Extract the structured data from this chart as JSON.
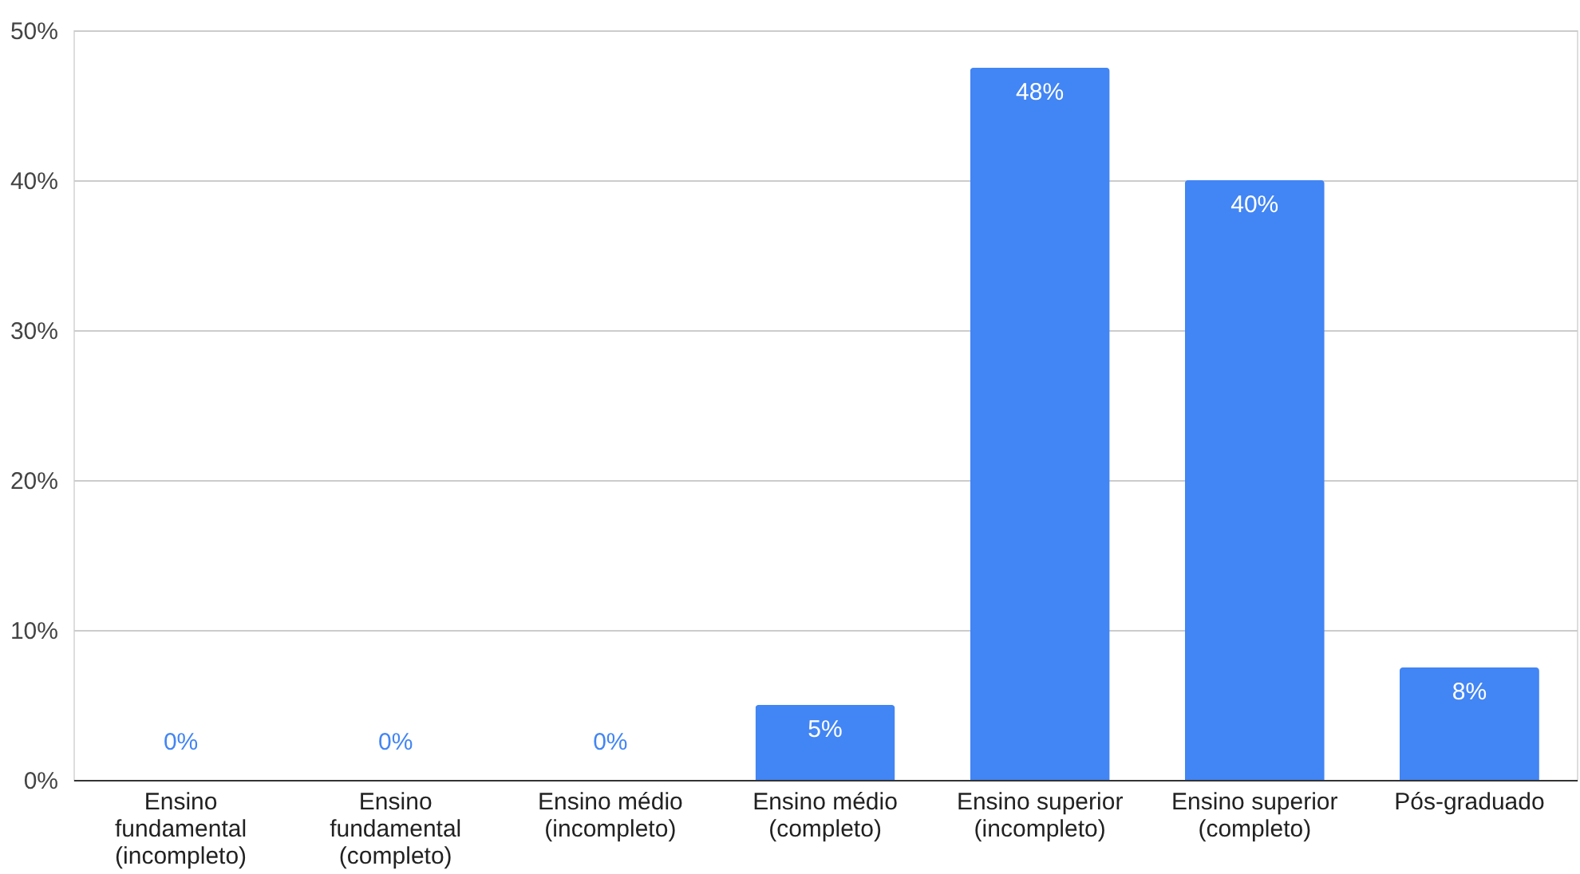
{
  "chart_data": {
    "type": "bar",
    "categories": [
      "Ensino fundamental (incompleto)",
      "Ensino fundamental (completo)",
      "Ensino médio (incompleto)",
      "Ensino médio (completo)",
      "Ensino superior (incompleto)",
      "Ensino superior (completo)",
      "Pós-graduado"
    ],
    "values": [
      0,
      0,
      0,
      5,
      47.5,
      40,
      7.5
    ],
    "value_labels": [
      "0%",
      "0%",
      "0%",
      "5%",
      "48%",
      "40%",
      "8%"
    ],
    "color": "#4285f4",
    "ylim": [
      0,
      50
    ],
    "yticks": [
      {
        "value": 0,
        "label": "0%"
      },
      {
        "value": 10,
        "label": "10%"
      },
      {
        "value": 20,
        "label": "20%"
      },
      {
        "value": 30,
        "label": "30%"
      },
      {
        "value": 40,
        "label": "40%"
      },
      {
        "value": 50,
        "label": "50%"
      }
    ],
    "grid": "y"
  }
}
